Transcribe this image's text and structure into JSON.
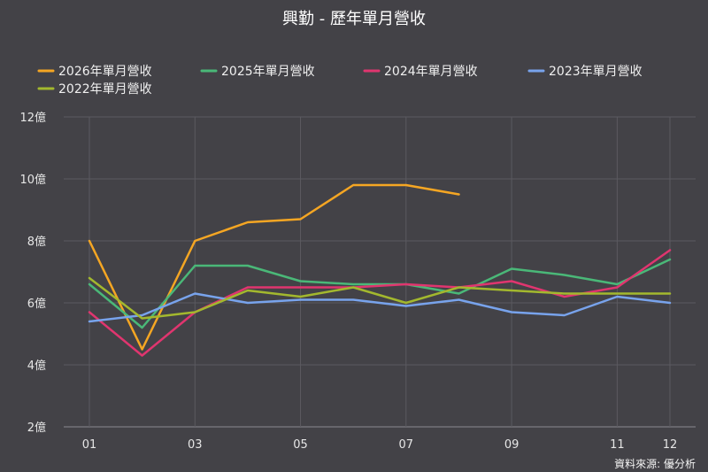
{
  "chart_data": {
    "type": "line",
    "title": "興勤 - 歷年單月營收",
    "source": "資料來源: 優分析",
    "x": [
      "01",
      "02",
      "03",
      "04",
      "05",
      "06",
      "07",
      "08",
      "09",
      "10",
      "11",
      "12"
    ],
    "x_tick_labels": [
      "01",
      "",
      "03",
      "",
      "05",
      "",
      "07",
      "",
      "09",
      "",
      "11",
      "12"
    ],
    "y_unit": "億",
    "ylim": [
      2,
      12
    ],
    "y_ticks": [
      2,
      4,
      6,
      8,
      10,
      12
    ],
    "grid": true,
    "legend_position": "top",
    "series": [
      {
        "name": "2026年單月營收",
        "color": "#f5a623",
        "values": [
          8.0,
          4.5,
          8.0,
          8.6,
          8.7,
          9.8,
          9.8,
          9.5,
          null,
          null,
          null,
          null
        ]
      },
      {
        "name": "2025年單月營收",
        "color": "#4ab878",
        "values": [
          6.6,
          5.2,
          7.2,
          7.2,
          6.7,
          6.6,
          6.6,
          6.3,
          7.1,
          6.9,
          6.6,
          7.4
        ]
      },
      {
        "name": "2024年單月營收",
        "color": "#e0356f",
        "values": [
          5.7,
          4.3,
          5.7,
          6.5,
          6.5,
          6.5,
          6.6,
          6.5,
          6.7,
          6.2,
          6.5,
          7.7
        ]
      },
      {
        "name": "2023年單月營收",
        "color": "#78a3ec",
        "values": [
          5.4,
          5.6,
          6.3,
          6.0,
          6.1,
          6.1,
          5.9,
          6.1,
          5.7,
          5.6,
          6.2,
          6.0
        ]
      },
      {
        "name": "2022年單月營收",
        "color": "#a3b82e",
        "values": [
          6.8,
          5.5,
          5.7,
          6.4,
          6.2,
          6.5,
          6.0,
          6.5,
          6.4,
          6.3,
          6.3,
          6.3
        ]
      }
    ]
  }
}
